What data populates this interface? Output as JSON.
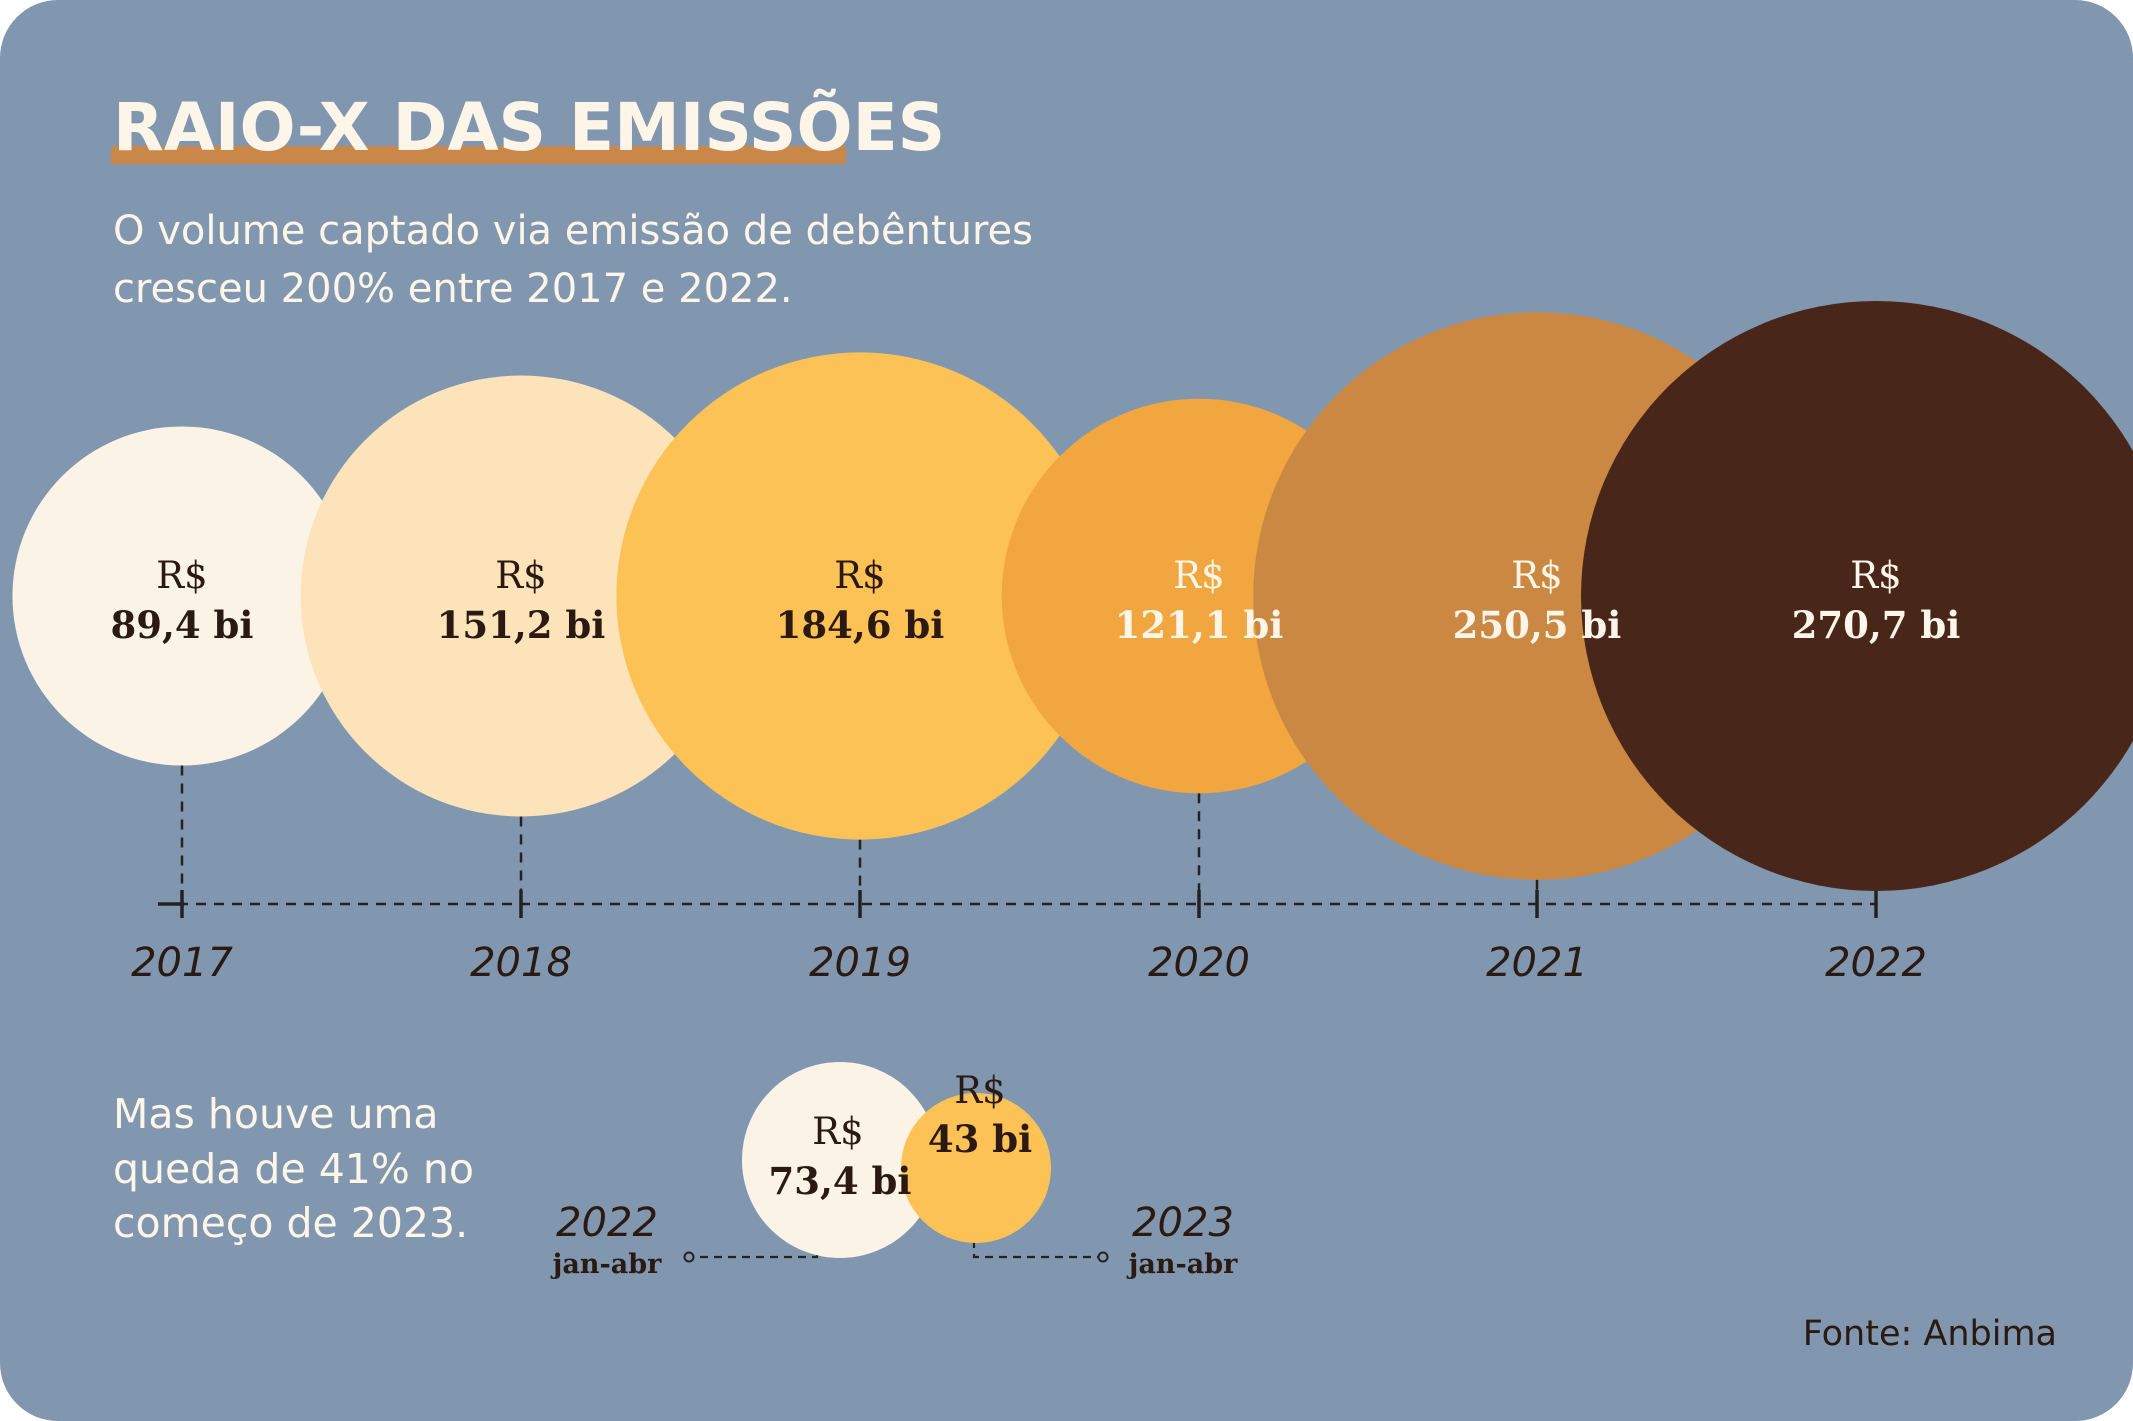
{
  "title": "RAIO-X DAS EMISSÕES",
  "subtitle_lines": [
    "O volume captado via emissão de debêntures",
    "cresceu 200% entre 2017 e 2022."
  ],
  "currency_prefix": "R$",
  "colors": {
    "background": "#8197b0",
    "title_underline": "#c9884a",
    "text_light": "#fcf5e8",
    "text_dark": "#2a1a12",
    "axis": "#222222"
  },
  "chart_data": [
    {
      "type": "bubble",
      "categories": [
        "2017",
        "2018",
        "2019",
        "2020",
        "2021",
        "2022"
      ],
      "values": [
        89.4,
        151.2,
        184.6,
        121.1,
        250.5,
        270.7
      ],
      "value_labels": [
        "89,4 bi",
        "151,2 bi",
        "184,6 bi",
        "121,1 bi",
        "250,5 bi",
        "270,7 bi"
      ],
      "colors": [
        "#fbf4e6",
        "#fde3b9",
        "#fdc256",
        "#f1a63f",
        "#cb8843",
        "#482619"
      ],
      "label_colors": [
        "#2a1a12",
        "#2a1a12",
        "#2a1a12",
        "#fcf5e8",
        "#fcf5e8",
        "#fcf5e8"
      ]
    },
    {
      "type": "bubble",
      "categories": [
        "2022",
        "2023"
      ],
      "category_sublabels": [
        "jan-abr",
        "jan-abr"
      ],
      "values": [
        73.4,
        43
      ],
      "value_labels": [
        "73,4 bi",
        "43 bi"
      ],
      "colors": [
        "#fbf4e6",
        "#fdc256"
      ],
      "label_colors": [
        "#2a1a12",
        "#2a1a12"
      ]
    }
  ],
  "bottom_note_lines": [
    "Mas houve uma",
    "queda de 41% no",
    "começo de 2023."
  ],
  "source": "Fonte: Anbima"
}
